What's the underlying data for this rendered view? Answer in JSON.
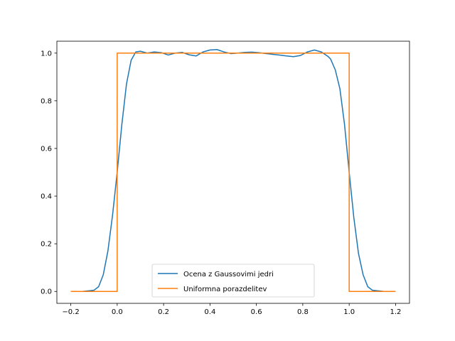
{
  "chart_data": {
    "type": "line",
    "title": "",
    "xlabel": "",
    "ylabel": "",
    "xlim": [
      -0.26,
      1.26
    ],
    "ylim": [
      -0.05,
      1.05
    ],
    "xticks": [
      -0.2,
      0.0,
      0.2,
      0.4,
      0.6,
      0.8,
      1.0,
      1.2
    ],
    "xtick_labels": [
      "−0.2",
      "0.0",
      "0.2",
      "0.4",
      "0.6",
      "0.8",
      "1.0",
      "1.2"
    ],
    "yticks": [
      0.0,
      0.2,
      0.4,
      0.6,
      0.8,
      1.0
    ],
    "ytick_labels": [
      "0.0",
      "0.2",
      "0.4",
      "0.6",
      "0.8",
      "1.0"
    ],
    "grid": false,
    "legend_position": "bottom-center",
    "series": [
      {
        "name": "Ocena z Gaussovimi jedri",
        "color": "#1f77b4",
        "x": [
          -0.2,
          -0.15,
          -0.1,
          -0.08,
          -0.06,
          -0.04,
          -0.02,
          0.0,
          0.02,
          0.04,
          0.06,
          0.08,
          0.1,
          0.13,
          0.16,
          0.19,
          0.22,
          0.25,
          0.28,
          0.31,
          0.34,
          0.37,
          0.4,
          0.43,
          0.46,
          0.49,
          0.52,
          0.55,
          0.58,
          0.61,
          0.64,
          0.67,
          0.7,
          0.73,
          0.76,
          0.79,
          0.82,
          0.85,
          0.88,
          0.91,
          0.92,
          0.94,
          0.96,
          0.98,
          1.0,
          1.02,
          1.04,
          1.06,
          1.08,
          1.1,
          1.15,
          1.2
        ],
        "y": [
          0.0,
          0.0,
          0.005,
          0.02,
          0.07,
          0.17,
          0.32,
          0.5,
          0.7,
          0.87,
          0.97,
          1.005,
          1.008,
          1.0,
          1.005,
          1.002,
          0.992,
          1.0,
          1.003,
          0.993,
          0.988,
          1.005,
          1.013,
          1.015,
          1.005,
          0.998,
          1.0,
          1.003,
          1.004,
          1.002,
          0.998,
          0.995,
          0.992,
          0.988,
          0.985,
          0.99,
          1.005,
          1.013,
          1.005,
          0.985,
          0.975,
          0.93,
          0.85,
          0.7,
          0.5,
          0.31,
          0.16,
          0.07,
          0.02,
          0.005,
          0.0,
          0.0
        ]
      },
      {
        "name": "Uniformna porazdelitev",
        "color": "#ff7f0e",
        "x": [
          -0.2,
          0.0,
          0.0,
          1.0,
          1.0,
          1.2
        ],
        "y": [
          0.0,
          0.0,
          1.0,
          1.0,
          0.0,
          0.0
        ]
      }
    ]
  }
}
